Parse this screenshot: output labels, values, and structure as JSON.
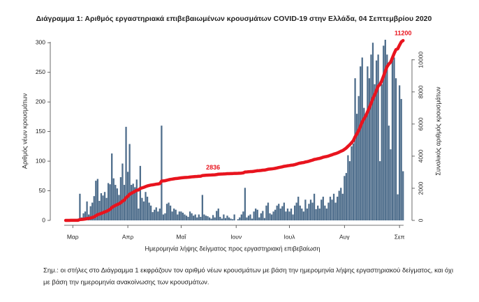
{
  "chart_data": {
    "type": "combo",
    "title": "Διάγραμμα 1: Αριθμός εργαστηριακά επιβεβαιωμένων κρουσμάτων COVID-19 στην Ελλάδα, 04 Σεπτεμβρίου 2020",
    "y_label": "Αριθμός νέων κρουσμάτων",
    "y2_label": "Συνολικός αριθμός κρουσμάτων",
    "x_label": "Ημερομηνία λήψης δείγματος προς εργαστηριακή επιβεβαίωση",
    "note": [
      "Σημ.: οι στήλες στο Διάγραμμα 1 εκφράζουν τον αριθμό νέων κρουσμάτων με βάση την ημερομηνία λήψης εργαστηριακού δείγματος, και όχι",
      "με βάση την ημερομηνία ανακοίνωσης των κρουσμάτων."
    ],
    "categories": [
      null,
      null,
      null,
      null,
      "Μαρ",
      null,
      null,
      null,
      null,
      null,
      null,
      null,
      null,
      null,
      null,
      null,
      null,
      null,
      null,
      null,
      null,
      null,
      null,
      null,
      null,
      null,
      null,
      null,
      null,
      null,
      null,
      null,
      null,
      null,
      null,
      "Απρ",
      null,
      null,
      null,
      null,
      null,
      null,
      null,
      null,
      null,
      null,
      null,
      null,
      null,
      null,
      null,
      null,
      null,
      null,
      null,
      null,
      null,
      null,
      null,
      null,
      null,
      null,
      null,
      null,
      null,
      "Μαΐ",
      null,
      null,
      null,
      null,
      null,
      null,
      null,
      null,
      null,
      null,
      null,
      null,
      null,
      null,
      null,
      null,
      null,
      null,
      null,
      null,
      null,
      null,
      null,
      null,
      null,
      null,
      null,
      null,
      null,
      null,
      "Ιουν",
      null,
      null,
      null,
      null,
      null,
      null,
      null,
      null,
      null,
      null,
      null,
      null,
      null,
      null,
      null,
      null,
      null,
      null,
      null,
      null,
      null,
      null,
      null,
      null,
      null,
      null,
      null,
      null,
      null,
      "Ιουλ",
      null,
      null,
      null,
      null,
      null,
      null,
      null,
      null,
      null,
      null,
      null,
      null,
      null,
      null,
      null,
      null,
      null,
      null,
      null,
      null,
      null,
      null,
      null,
      null,
      null,
      null,
      null,
      null,
      null,
      null,
      "Αυγ",
      null,
      null,
      null,
      null,
      null,
      null,
      null,
      null,
      null,
      null,
      null,
      null,
      null,
      null,
      null,
      null,
      null,
      null,
      null,
      null,
      null,
      null,
      null,
      null,
      null,
      null,
      null,
      null,
      null,
      null,
      "Σεπ",
      null,
      null
    ],
    "series": [
      {
        "type": "bar",
        "color": "#4f6e8c",
        "values": [
          1,
          0,
          1,
          1,
          0,
          0,
          2,
          3,
          45,
          5,
          12,
          15,
          32,
          10,
          24,
          30,
          41,
          67,
          70,
          33,
          46,
          42,
          48,
          38,
          63,
          61,
          113,
          71,
          60,
          54,
          43,
          73,
          96,
          60,
          158,
          82,
          129,
          60,
          62,
          56,
          69,
          20,
          92,
          38,
          32,
          48,
          40,
          30,
          25,
          14,
          18,
          22,
          15,
          20,
          160,
          10,
          12,
          28,
          30,
          25,
          15,
          20,
          18,
          10,
          15,
          15,
          13,
          10,
          8,
          6,
          15,
          12,
          8,
          10,
          5,
          10,
          6,
          43,
          10,
          8,
          7,
          5,
          3,
          9,
          5,
          16,
          20,
          6,
          3,
          10,
          4,
          8,
          5,
          3,
          2,
          10,
          0,
          2,
          5,
          10,
          15,
          55,
          5,
          8,
          10,
          3,
          15,
          20,
          18,
          5,
          12,
          16,
          4,
          25,
          30,
          12,
          10,
          15,
          18,
          25,
          28,
          20,
          24,
          30,
          15,
          20,
          15,
          20,
          10,
          25,
          30,
          40,
          25,
          20,
          15,
          35,
          20,
          28,
          35,
          30,
          45,
          19,
          25,
          20,
          35,
          40,
          25,
          20,
          30,
          40,
          35,
          45,
          30,
          40,
          50,
          55,
          45,
          75,
          80,
          110,
          100,
          125,
          130,
          240,
          180,
          210,
          260,
          275,
          190,
          180,
          260,
          240,
          280,
          300,
          230,
          270,
          280,
          100,
          230,
          295,
          305,
          280,
          160,
          120,
          270,
          275,
          240,
          44,
          228,
          205,
          83
        ]
      },
      {
        "type": "line",
        "axis": "y2",
        "color": "#e8141e",
        "values": [
          1,
          1,
          2,
          3,
          3,
          3,
          5,
          8,
          53,
          58,
          70,
          85,
          117,
          127,
          151,
          181,
          222,
          289,
          359,
          392,
          438,
          480,
          528,
          566,
          629,
          690,
          803,
          874,
          934,
          988,
          1031,
          1104,
          1200,
          1260,
          1418,
          1500,
          1629,
          1689,
          1751,
          1807,
          1876,
          1896,
          1988,
          2026,
          2058,
          2106,
          2146,
          2176,
          2201,
          2215,
          2233,
          2255,
          2270,
          2290,
          2450,
          2460,
          2472,
          2500,
          2530,
          2555,
          2570,
          2590,
          2608,
          2618,
          2633,
          2648,
          2661,
          2671,
          2679,
          2685,
          2700,
          2712,
          2720,
          2730,
          2735,
          2745,
          2751,
          2794,
          2804,
          2812,
          2819,
          2824,
          2827,
          2836,
          2841,
          2857,
          2877,
          2883,
          2886,
          2896,
          2900,
          2908,
          2913,
          2916,
          2918,
          2928,
          2928,
          2930,
          2935,
          2945,
          2960,
          3015,
          3020,
          3028,
          3038,
          3041,
          3056,
          3076,
          3094,
          3099,
          3111,
          3127,
          3131,
          3156,
          3186,
          3198,
          3208,
          3223,
          3241,
          3266,
          3294,
          3314,
          3338,
          3368,
          3383,
          3403,
          3418,
          3438,
          3448,
          3473,
          3503,
          3543,
          3568,
          3588,
          3603,
          3638,
          3658,
          3686,
          3721,
          3751,
          3796,
          3815,
          3840,
          3860,
          3895,
          3935,
          3960,
          3980,
          4010,
          4050,
          4085,
          4130,
          4160,
          4200,
          4250,
          4305,
          4350,
          4425,
          4505,
          4615,
          4715,
          4840,
          4970,
          5210,
          5390,
          5600,
          5860,
          6135,
          6325,
          6505,
          6765,
          7005,
          7285,
          7585,
          7815,
          8085,
          8365,
          8465,
          8695,
          8990,
          9295,
          9575,
          9735,
          9855,
          10125,
          10400,
          10640,
          10684,
          10912,
          11117,
          11200
        ]
      }
    ],
    "annotations": [
      2836,
      11200
    ],
    "ylim": [
      0,
      305
    ],
    "yticks": [
      0,
      50,
      100,
      150,
      200,
      250,
      300
    ],
    "y2lim": [
      0,
      11250
    ],
    "y2ticks": [
      0,
      2000,
      4000,
      6000,
      8000,
      10000
    ]
  }
}
